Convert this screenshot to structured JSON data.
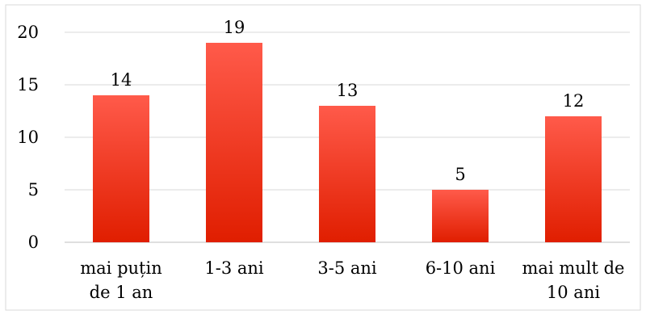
{
  "chart_data": {
    "type": "bar",
    "title": "",
    "xlabel": "",
    "ylabel": "",
    "categories": [
      [
        "mai puțin",
        "de 1 an"
      ],
      [
        "1-3 ani"
      ],
      [
        "3-5 ani"
      ],
      [
        "6-10 ani"
      ],
      [
        "mai mult de",
        "10 ani"
      ]
    ],
    "values": [
      14,
      19,
      13,
      5,
      12
    ],
    "ylim": [
      0,
      20
    ],
    "yticks": [
      0,
      5,
      10,
      15,
      20
    ],
    "grid": true,
    "legend": "none",
    "colors": {
      "bar_top": "#ff5a4a",
      "bar_bottom": "#e01e00",
      "grid": "#d9d9d9",
      "axis": "#bfbfbf",
      "frame": "#d9d9d9"
    }
  }
}
